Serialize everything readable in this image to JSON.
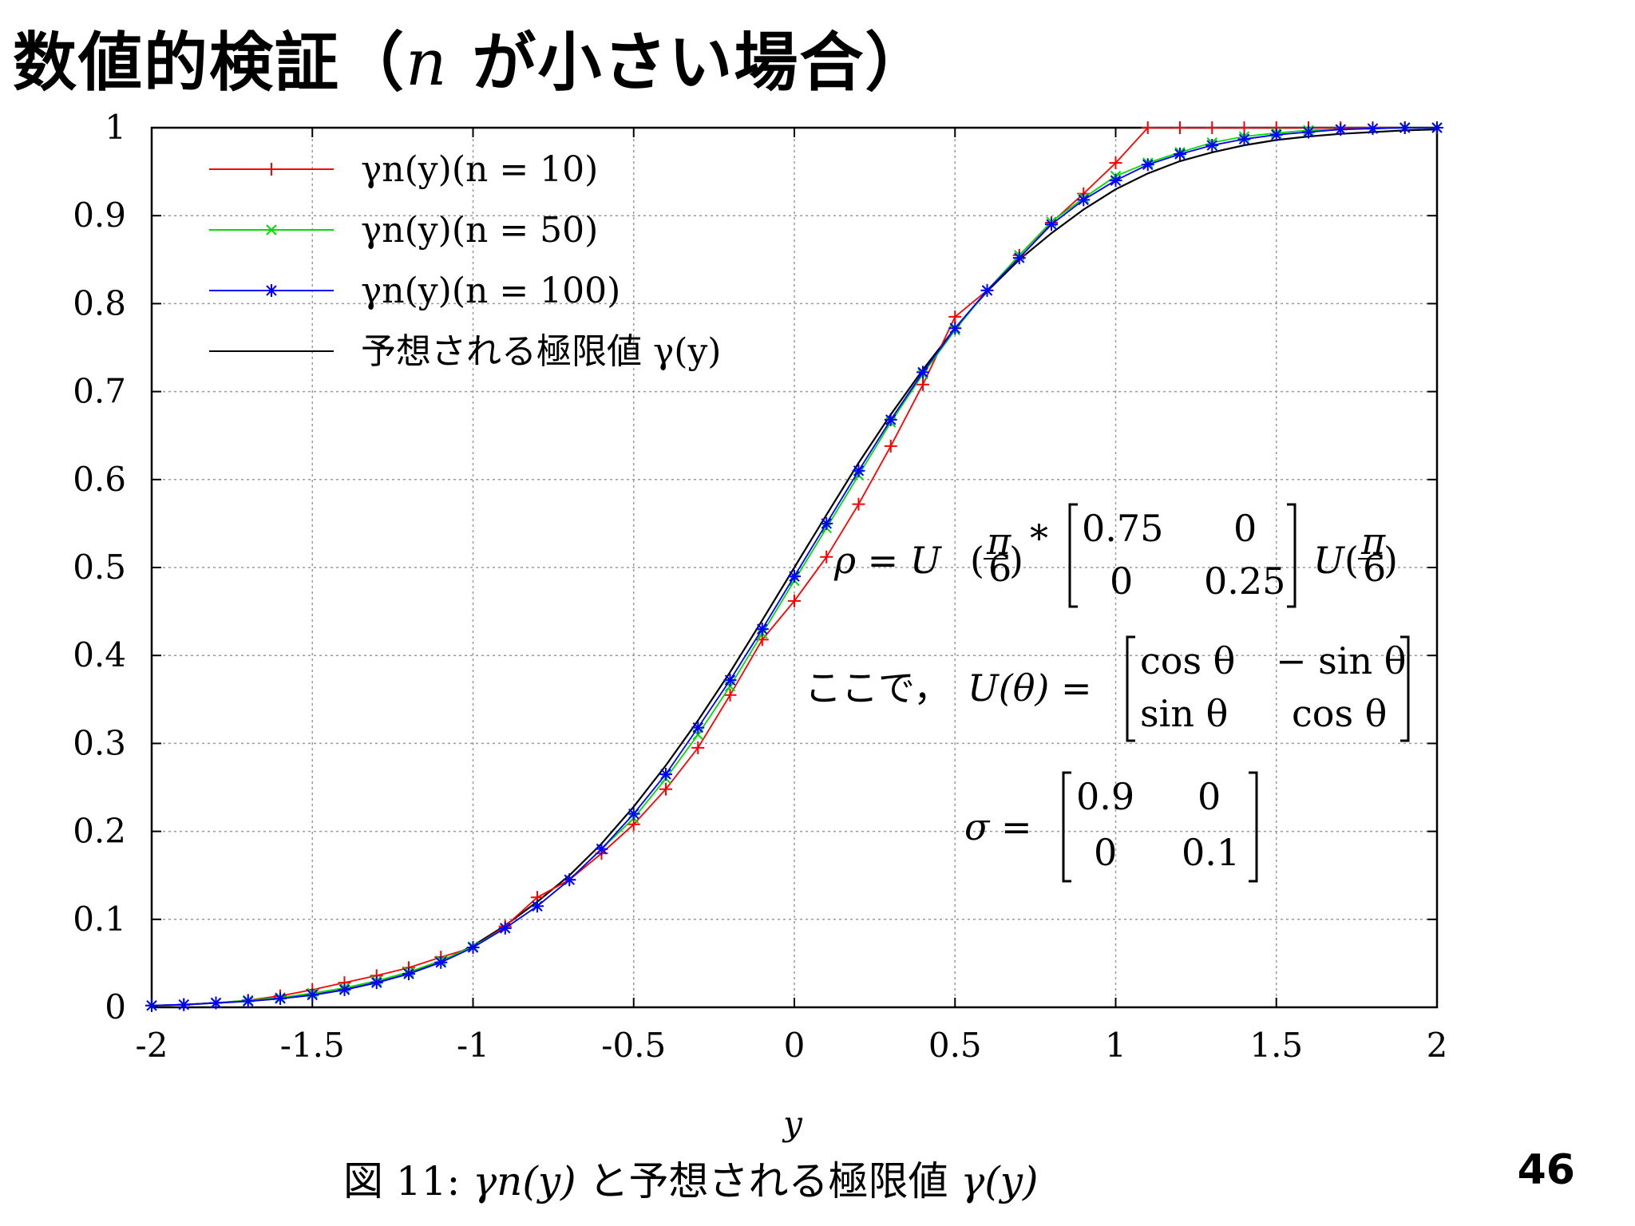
{
  "slide": {
    "title_prefix": "数値的検証（",
    "title_var": "n",
    "title_suffix": " が小さい場合）",
    "page_number": "46"
  },
  "caption": {
    "prefix": "図 11: ",
    "math1": "γn(y)",
    "middle": " と予想される極限値 ",
    "math2": "γ(y)"
  },
  "annotations": {
    "rho_lhs": "ρ = U",
    "rho_frac_num": "π",
    "rho_frac_den": "6",
    "rho_star": "*",
    "rho_matrix": [
      [
        "0.75",
        "0"
      ],
      [
        "0",
        "0.25"
      ]
    ],
    "rho_tail": "U",
    "u_prefix": "ここで，",
    "u_lhs": "U(θ) =",
    "u_matrix": [
      [
        "cos θ",
        "− sin θ"
      ],
      [
        "sin θ",
        "cos θ"
      ]
    ],
    "sigma_lhs": "σ =",
    "sigma_matrix": [
      [
        "0.9",
        "0"
      ],
      [
        "0",
        "0.1"
      ]
    ]
  },
  "chart_data": {
    "type": "line",
    "title": "",
    "xlabel": "y",
    "ylabel": "",
    "xlim": [
      -2,
      2
    ],
    "ylim": [
      0,
      1
    ],
    "x_ticks": [
      -2,
      -1.5,
      -1,
      -0.5,
      0,
      0.5,
      1,
      1.5,
      2
    ],
    "x_tick_labels": [
      "-2",
      "-1.5",
      "-1",
      "-0.5",
      "0",
      "0.5",
      "1",
      "1.5",
      "2"
    ],
    "y_ticks": [
      0,
      0.1,
      0.2,
      0.3,
      0.4,
      0.5,
      0.6,
      0.7,
      0.8,
      0.9,
      1
    ],
    "y_tick_labels": [
      "0",
      "0.1",
      "0.2",
      "0.3",
      "0.4",
      "0.5",
      "0.6",
      "0.7",
      "0.8",
      "0.9",
      "1"
    ],
    "grid": true,
    "legend_position": "top-left",
    "x": [
      -2,
      -1.9,
      -1.8,
      -1.7,
      -1.6,
      -1.5,
      -1.4,
      -1.3,
      -1.2,
      -1.1,
      -1,
      -0.9,
      -0.8,
      -0.7,
      -0.6,
      -0.5,
      -0.4,
      -0.3,
      -0.2,
      -0.1,
      0,
      0.1,
      0.2,
      0.3,
      0.4,
      0.5,
      0.6,
      0.7,
      0.8,
      0.9,
      1,
      1.1,
      1.2,
      1.3,
      1.4,
      1.5,
      1.6,
      1.7,
      1.8,
      1.9,
      2
    ],
    "series": [
      {
        "name": "γn(y)(n = 10)",
        "color": "#ff0000",
        "marker": "plus",
        "values": [
          0.002,
          0.003,
          0.005,
          0.008,
          0.013,
          0.02,
          0.028,
          0.036,
          0.045,
          0.057,
          0.068,
          0.092,
          0.125,
          0.145,
          0.175,
          0.208,
          0.248,
          0.295,
          0.355,
          0.418,
          0.462,
          0.512,
          0.572,
          0.638,
          0.708,
          0.785,
          0.815,
          0.855,
          0.892,
          0.925,
          0.96,
          1.0,
          1.0,
          1.0,
          1.0,
          1.0,
          1.0,
          1.0,
          1.0,
          1.0,
          1.0
        ]
      },
      {
        "name": "γn(y)(n = 50)",
        "color": "#00dd00",
        "marker": "x",
        "values": [
          0.002,
          0.003,
          0.005,
          0.008,
          0.011,
          0.016,
          0.022,
          0.03,
          0.04,
          0.053,
          0.069,
          0.09,
          0.115,
          0.145,
          0.18,
          0.215,
          0.26,
          0.31,
          0.365,
          0.425,
          0.485,
          0.545,
          0.605,
          0.665,
          0.72,
          0.77,
          0.815,
          0.855,
          0.893,
          0.92,
          0.945,
          0.96,
          0.972,
          0.983,
          0.99,
          0.994,
          0.997,
          0.998,
          0.999,
          1.0,
          1.0
        ]
      },
      {
        "name": "γn(y)(n = 100)",
        "color": "#0000ff",
        "marker": "star",
        "values": [
          0.002,
          0.003,
          0.005,
          0.007,
          0.01,
          0.014,
          0.02,
          0.028,
          0.038,
          0.051,
          0.068,
          0.09,
          0.115,
          0.145,
          0.18,
          0.22,
          0.265,
          0.318,
          0.372,
          0.43,
          0.49,
          0.55,
          0.61,
          0.668,
          0.722,
          0.772,
          0.815,
          0.852,
          0.89,
          0.918,
          0.94,
          0.958,
          0.97,
          0.98,
          0.987,
          0.992,
          0.995,
          0.998,
          0.999,
          1.0,
          1.0
        ]
      },
      {
        "name": "予想される極限値 γ(y)",
        "color": "#000000",
        "marker": "none",
        "values": [
          0.002,
          0.003,
          0.005,
          0.007,
          0.01,
          0.014,
          0.02,
          0.028,
          0.038,
          0.052,
          0.07,
          0.093,
          0.12,
          0.15,
          0.186,
          0.228,
          0.275,
          0.326,
          0.381,
          0.44,
          0.5,
          0.56,
          0.619,
          0.674,
          0.725,
          0.772,
          0.814,
          0.85,
          0.88,
          0.907,
          0.93,
          0.948,
          0.962,
          0.972,
          0.98,
          0.986,
          0.99,
          0.993,
          0.995,
          0.997,
          0.998
        ]
      }
    ]
  }
}
